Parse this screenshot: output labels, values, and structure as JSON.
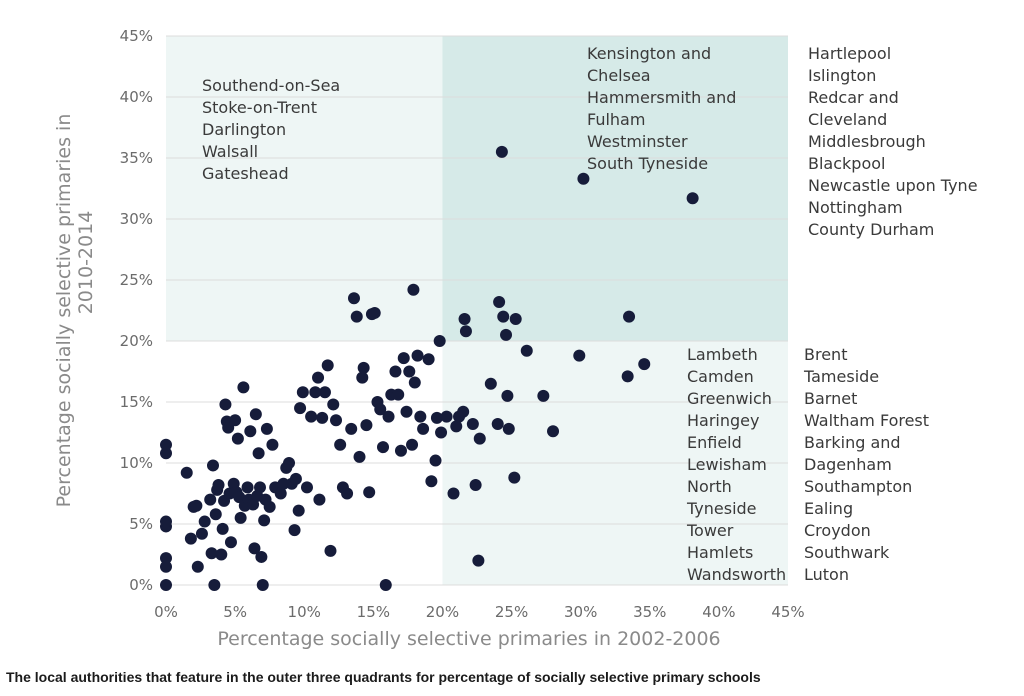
{
  "caption": "The local authorities that feature in the outer three quadrants for percentage of socially selective primary schools",
  "colors": {
    "dot": "#161c3a",
    "quadrant_top_left": "#eef6f5",
    "quadrant_top_right": "#d6eae8",
    "quadrant_bottom_right": "#eef6f5",
    "grid": "#dcdcdc"
  },
  "chart_data": {
    "type": "scatter",
    "title": "",
    "xlabel": "Percentage socially selective primaries in 2002-2006",
    "ylabel_lines": [
      "Percentage socially selective primaries in",
      "2010-2014"
    ],
    "xlim": [
      0,
      45
    ],
    "ylim": [
      0,
      45
    ],
    "x_ticks": [
      {
        "value": 0,
        "label": "0%"
      },
      {
        "value": 5,
        "label": "5%"
      },
      {
        "value": 10,
        "label": "10%"
      },
      {
        "value": 15,
        "label": "15%"
      },
      {
        "value": 20,
        "label": "20%"
      },
      {
        "value": 25,
        "label": "25%"
      },
      {
        "value": 30,
        "label": "30%"
      },
      {
        "value": 35,
        "label": "35%"
      },
      {
        "value": 40,
        "label": "40%"
      },
      {
        "value": 45,
        "label": "45%"
      }
    ],
    "y_ticks": [
      {
        "value": 0,
        "label": "0%"
      },
      {
        "value": 5,
        "label": "5%"
      },
      {
        "value": 10,
        "label": "10%"
      },
      {
        "value": 15,
        "label": "15%"
      },
      {
        "value": 20,
        "label": "20%"
      },
      {
        "value": 25,
        "label": "25%"
      },
      {
        "value": 30,
        "label": "30%"
      },
      {
        "value": 35,
        "label": "35%"
      },
      {
        "value": 40,
        "label": "40%"
      },
      {
        "value": 45,
        "label": "45%"
      }
    ],
    "quadrant_threshold": {
      "x": 20,
      "y": 20
    },
    "quadrant_labels": {
      "top_left": [
        "Southend-on-Sea",
        "Stoke-on-Trent",
        "Darlington",
        "Walsall",
        "Gateshead"
      ],
      "top_right_col1": [
        "Kensington and",
        "Chelsea",
        "Hammersmith and",
        "Fulham",
        "Westminster",
        "South Tyneside"
      ],
      "top_right_col2": [
        "Hartlepool",
        "Islington",
        "Redcar and",
        "Cleveland",
        "Middlesbrough",
        "Blackpool",
        "Newcastle upon Tyne",
        "Nottingham",
        "County Durham"
      ],
      "bottom_right_col1": [
        "Lambeth",
        "Camden",
        "Greenwich",
        "Haringey",
        "Enfield",
        "Lewisham",
        "North",
        "Tyneside",
        "Tower",
        "Hamlets",
        "Wandsworth"
      ],
      "bottom_right_col2": [
        "Brent",
        "Tameside",
        "Barnet",
        "Waltham Forest",
        "Barking and",
        "Dagenham",
        "Southampton",
        "Ealing",
        "Croydon",
        "Southwark",
        "Luton"
      ]
    },
    "points": [
      [
        0,
        0
      ],
      [
        0,
        1.5
      ],
      [
        0,
        2.2
      ],
      [
        0,
        4.8
      ],
      [
        0,
        5.2
      ],
      [
        0,
        10.8
      ],
      [
        0,
        11.5
      ],
      [
        1.5,
        9.2
      ],
      [
        1.8,
        3.8
      ],
      [
        2,
        6.4
      ],
      [
        2.2,
        6.5
      ],
      [
        2.3,
        1.5
      ],
      [
        2.6,
        4.2
      ],
      [
        2.8,
        5.2
      ],
      [
        3.2,
        7
      ],
      [
        3.3,
        2.6
      ],
      [
        3.4,
        9.8
      ],
      [
        3.5,
        0
      ],
      [
        3.6,
        5.8
      ],
      [
        3.7,
        7.8
      ],
      [
        3.8,
        8.2
      ],
      [
        4,
        2.5
      ],
      [
        4.1,
        4.6
      ],
      [
        4.2,
        6.9
      ],
      [
        4.3,
        14.8
      ],
      [
        4.4,
        13.4
      ],
      [
        4.5,
        12.9
      ],
      [
        4.6,
        7.5
      ],
      [
        4.7,
        3.5
      ],
      [
        4.9,
        8.3
      ],
      [
        5,
        13.5
      ],
      [
        5.1,
        7.6
      ],
      [
        5.2,
        12
      ],
      [
        5.3,
        7.2
      ],
      [
        5.4,
        5.5
      ],
      [
        5.6,
        16.2
      ],
      [
        5.7,
        6.5
      ],
      [
        5.9,
        8
      ],
      [
        6,
        7
      ],
      [
        6.1,
        12.6
      ],
      [
        6.3,
        6.6
      ],
      [
        6.4,
        3
      ],
      [
        6.5,
        14
      ],
      [
        6.6,
        7.3
      ],
      [
        6.7,
        10.8
      ],
      [
        6.8,
        8
      ],
      [
        6.9,
        2.3
      ],
      [
        7,
        0
      ],
      [
        7.1,
        5.3
      ],
      [
        7.2,
        7
      ],
      [
        7.3,
        12.8
      ],
      [
        7.5,
        6.4
      ],
      [
        7.7,
        11.5
      ],
      [
        7.9,
        8
      ],
      [
        8.3,
        7.5
      ],
      [
        8.5,
        8.3
      ],
      [
        8.7,
        9.6
      ],
      [
        8.9,
        10
      ],
      [
        9.1,
        8.3
      ],
      [
        9.3,
        4.5
      ],
      [
        9.4,
        8.7
      ],
      [
        9.6,
        6.1
      ],
      [
        9.7,
        14.5
      ],
      [
        9.9,
        15.8
      ],
      [
        10.2,
        8
      ],
      [
        10.5,
        13.8
      ],
      [
        10.8,
        15.8
      ],
      [
        11,
        17
      ],
      [
        11.1,
        7
      ],
      [
        11.3,
        13.7
      ],
      [
        11.5,
        15.8
      ],
      [
        11.7,
        18
      ],
      [
        11.9,
        2.8
      ],
      [
        12.1,
        14.8
      ],
      [
        12.3,
        13.5
      ],
      [
        12.6,
        11.5
      ],
      [
        12.8,
        8
      ],
      [
        13.1,
        7.5
      ],
      [
        13.4,
        12.8
      ],
      [
        13.6,
        23.5
      ],
      [
        13.8,
        22
      ],
      [
        14,
        10.5
      ],
      [
        14.2,
        17
      ],
      [
        14.3,
        17.8
      ],
      [
        14.5,
        13.1
      ],
      [
        14.7,
        7.6
      ],
      [
        14.9,
        22.2
      ],
      [
        15.1,
        22.3
      ],
      [
        15.3,
        15
      ],
      [
        15.5,
        14.4
      ],
      [
        15.7,
        11.3
      ],
      [
        15.9,
        0
      ],
      [
        16.1,
        13.8
      ],
      [
        16.3,
        15.6
      ],
      [
        16.6,
        17.5
      ],
      [
        16.8,
        15.6
      ],
      [
        17,
        11
      ],
      [
        17.2,
        18.6
      ],
      [
        17.4,
        14.2
      ],
      [
        17.6,
        17.5
      ],
      [
        17.8,
        11.5
      ],
      [
        17.9,
        24.2
      ],
      [
        18,
        16.6
      ],
      [
        18.2,
        18.8
      ],
      [
        18.4,
        13.8
      ],
      [
        18.6,
        12.8
      ],
      [
        19,
        18.5
      ],
      [
        19.2,
        8.5
      ],
      [
        19.5,
        10.2
      ],
      [
        19.6,
        13.7
      ],
      [
        19.8,
        20
      ],
      [
        19.9,
        12.5
      ],
      [
        20.3,
        13.8
      ],
      [
        20.8,
        7.5
      ],
      [
        21,
        13
      ],
      [
        21.2,
        13.8
      ],
      [
        21.5,
        14.2
      ],
      [
        21.6,
        21.8
      ],
      [
        21.7,
        20.8
      ],
      [
        22.2,
        13.2
      ],
      [
        22.4,
        8.2
      ],
      [
        22.6,
        2
      ],
      [
        22.7,
        12
      ],
      [
        23.5,
        16.5
      ],
      [
        24,
        13.2
      ],
      [
        24.1,
        23.2
      ],
      [
        24.3,
        35.5
      ],
      [
        24.4,
        22
      ],
      [
        24.6,
        20.5
      ],
      [
        24.7,
        15.5
      ],
      [
        24.8,
        12.8
      ],
      [
        25.2,
        8.8
      ],
      [
        25.3,
        21.8
      ],
      [
        26.1,
        19.2
      ],
      [
        27.3,
        15.5
      ],
      [
        28,
        12.6
      ],
      [
        29.9,
        18.8
      ],
      [
        30.2,
        33.3
      ],
      [
        33.4,
        17.1
      ],
      [
        33.5,
        22
      ],
      [
        34.6,
        18.1
      ],
      [
        38.1,
        31.7
      ]
    ]
  }
}
